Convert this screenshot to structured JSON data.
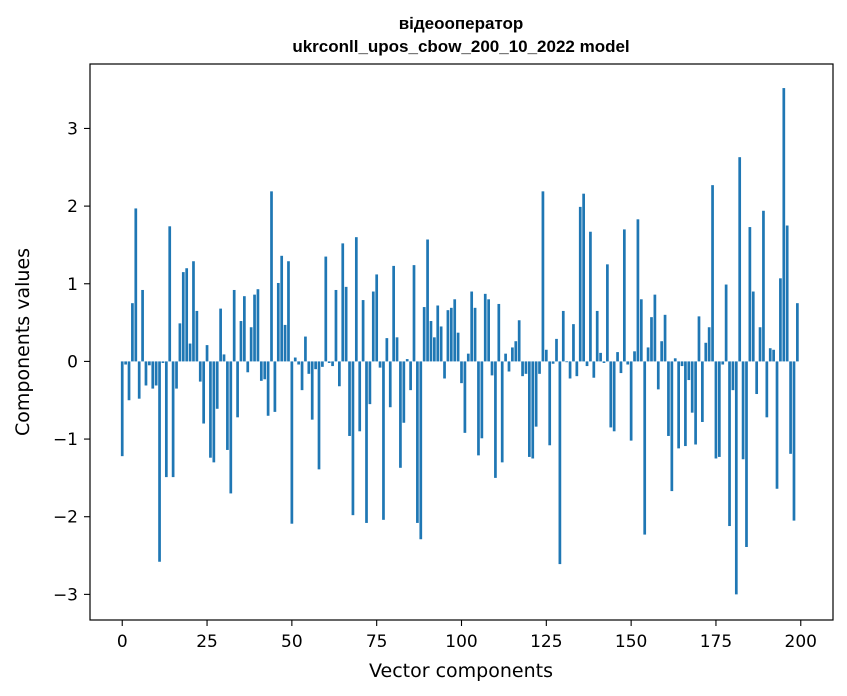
{
  "chart_data": {
    "type": "bar",
    "title_line1": "відеооператор",
    "title_line2": "ukrconll_upos_cbow_200_10_2022 model",
    "xlabel": "Vector components",
    "ylabel": "Components values",
    "xlim": [
      -9.5,
      209.5
    ],
    "ylim": [
      -3.33,
      3.83
    ],
    "xticks": [
      0,
      25,
      50,
      75,
      100,
      125,
      150,
      175,
      200
    ],
    "xtick_labels": [
      "0",
      "25",
      "50",
      "75",
      "100",
      "125",
      "150",
      "175",
      "200"
    ],
    "yticks": [
      -3,
      -2,
      -1,
      0,
      1,
      2,
      3
    ],
    "ytick_labels": [
      "−3",
      "−2",
      "−1",
      "0",
      "1",
      "2",
      "3"
    ],
    "bar_color": "#1f77b4",
    "grid": false,
    "values": [
      -1.22,
      -0.04,
      -0.5,
      0.75,
      1.97,
      -0.48,
      0.92,
      -0.31,
      -0.05,
      -0.35,
      -0.31,
      -2.58,
      -0.02,
      -1.49,
      1.74,
      -1.49,
      -0.35,
      0.49,
      1.15,
      1.2,
      0.23,
      1.29,
      0.65,
      -0.26,
      -0.8,
      0.21,
      -1.24,
      -1.3,
      -0.61,
      0.68,
      0.09,
      -1.14,
      -1.7,
      0.92,
      -0.72,
      0.52,
      0.84,
      -0.14,
      0.44,
      0.86,
      0.93,
      -0.25,
      -0.23,
      -0.7,
      2.19,
      -0.65,
      1.01,
      1.36,
      0.47,
      1.29,
      -2.09,
      0.05,
      -0.04,
      -0.37,
      0.32,
      -0.16,
      -0.75,
      -0.1,
      -1.39,
      -0.07,
      1.35,
      -0.02,
      -0.06,
      0.92,
      -0.32,
      1.52,
      0.96,
      -0.96,
      -1.98,
      1.6,
      -0.9,
      0.79,
      -2.08,
      -0.55,
      0.9,
      1.12,
      -0.08,
      -2.04,
      0.3,
      -0.59,
      1.23,
      0.31,
      -1.37,
      -0.79,
      0.03,
      -0.37,
      1.24,
      -2.08,
      -2.29,
      0.7,
      1.57,
      0.52,
      0.31,
      0.72,
      0.45,
      -0.22,
      0.66,
      0.69,
      0.8,
      0.37,
      -0.28,
      -0.92,
      0.1,
      0.9,
      0.69,
      -1.21,
      -0.99,
      0.87,
      0.8,
      -0.18,
      -1.5,
      0.74,
      -1.3,
      0.1,
      -0.13,
      0.18,
      0.26,
      0.53,
      -0.19,
      -0.16,
      -1.23,
      -1.25,
      -0.84,
      -0.16,
      2.19,
      0.15,
      -1.08,
      -0.03,
      0.29,
      -2.61,
      0.65,
      -0.01,
      -0.22,
      0.48,
      -0.19,
      1.99,
      2.16,
      -0.06,
      1.67,
      -0.21,
      0.65,
      0.11,
      -0.02,
      1.25,
      -0.85,
      -0.9,
      0.12,
      -0.15,
      1.7,
      -0.04,
      -1.02,
      0.13,
      1.83,
      0.8,
      -2.23,
      0.18,
      0.57,
      0.86,
      -0.36,
      0.26,
      0.6,
      -0.96,
      -1.67,
      0.04,
      -1.12,
      -0.06,
      -1.09,
      -0.24,
      -0.66,
      -1.07,
      0.58,
      -0.78,
      0.24,
      0.44,
      2.27,
      -1.25,
      -1.23,
      -0.04,
      0.99,
      -2.12,
      -0.37,
      -3.0,
      2.63,
      -1.26,
      -2.39,
      1.73,
      0.9,
      -0.42,
      0.44,
      1.94,
      -0.72,
      0.17,
      0.15,
      -1.64,
      1.07,
      3.52,
      1.75,
      -1.19,
      -2.05,
      0.75
    ]
  }
}
